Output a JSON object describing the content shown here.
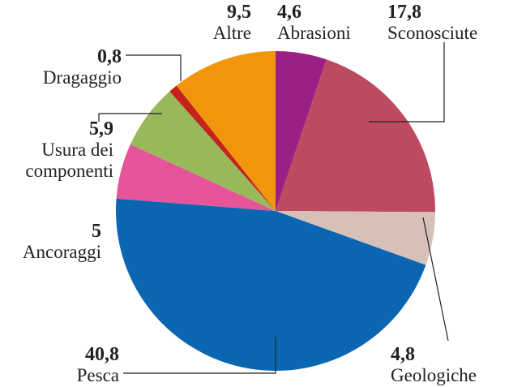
{
  "chart_data": {
    "type": "pie",
    "categories": [
      "Abrasioni",
      "Sconosciute",
      "Geologiche",
      "Pesca",
      "Ancoraggi",
      "Usura dei componenti",
      "Dragaggio",
      "Altre"
    ],
    "values": [
      4.6,
      17.8,
      4.8,
      40.8,
      5,
      5.9,
      0.8,
      9.5
    ],
    "value_labels": [
      "4,6",
      "17,8",
      "4,8",
      "40,8",
      "5",
      "5,9",
      "0,8",
      "9,5"
    ],
    "colors": [
      "#9c1f86",
      "#bd4a5e",
      "#d6c0b8",
      "#0b66b2",
      "#e6559a",
      "#97b95a",
      "#c5221c",
      "#f1960c"
    ]
  }
}
